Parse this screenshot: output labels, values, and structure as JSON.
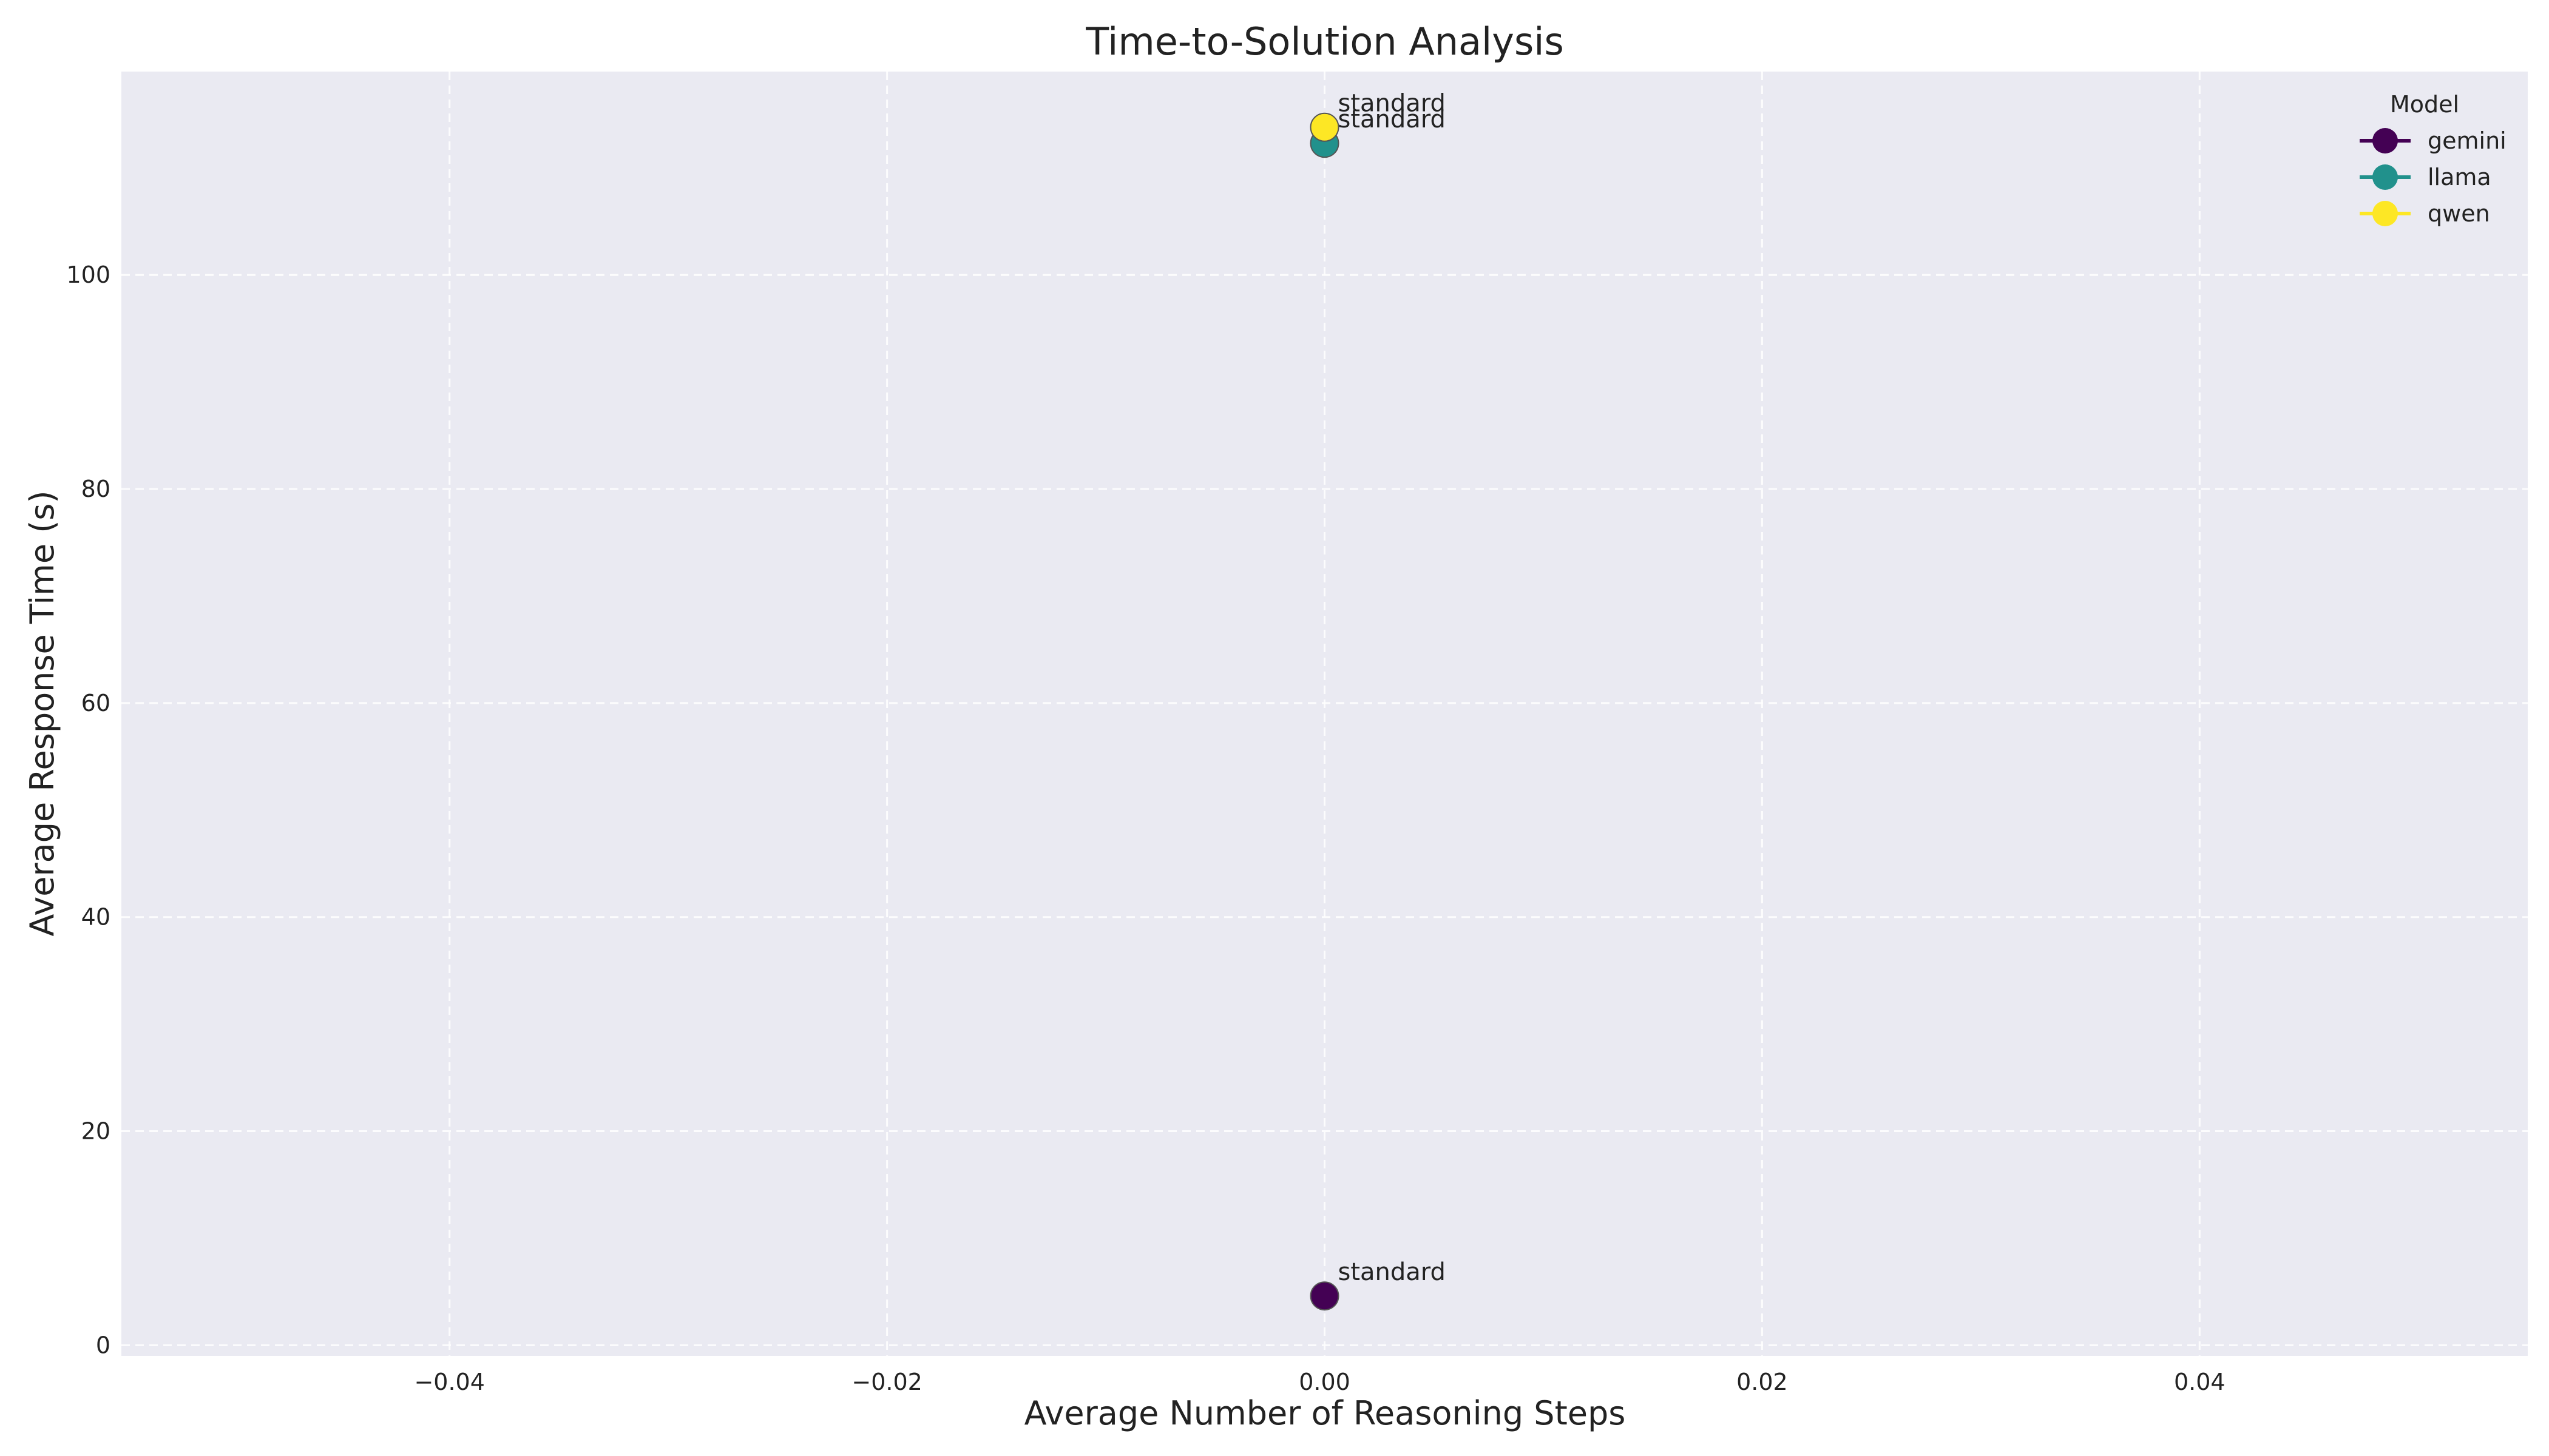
{
  "chart_data": {
    "type": "scatter",
    "title": "Time-to-Solution Analysis",
    "xlabel": "Average Number of Reasoning Steps",
    "ylabel": "Average Response Time (s)",
    "xlim": [
      -0.055,
      0.055
    ],
    "ylim": [
      -1,
      119
    ],
    "xticks": [
      -0.04,
      -0.02,
      0.0,
      0.02,
      0.04
    ],
    "xtick_labels": [
      "−0.04",
      "−0.02",
      "0.00",
      "0.02",
      "0.04"
    ],
    "yticks": [
      0,
      20,
      40,
      60,
      80,
      100
    ],
    "ytick_labels": [
      "0",
      "20",
      "40",
      "60",
      "80",
      "100"
    ],
    "grid": true,
    "legend": {
      "title": "Model",
      "position": "top-right"
    },
    "series": [
      {
        "name": "gemini",
        "color": "#440154",
        "points": [
          {
            "x": 0.0,
            "y": 4.6,
            "label": "standard"
          }
        ]
      },
      {
        "name": "llama",
        "color": "#21918c",
        "points": [
          {
            "x": 0.0,
            "y": 112.3,
            "label": "standard"
          }
        ]
      },
      {
        "name": "qwen",
        "color": "#fde725",
        "points": [
          {
            "x": 0.0,
            "y": 113.8,
            "label": "standard"
          }
        ]
      }
    ]
  }
}
